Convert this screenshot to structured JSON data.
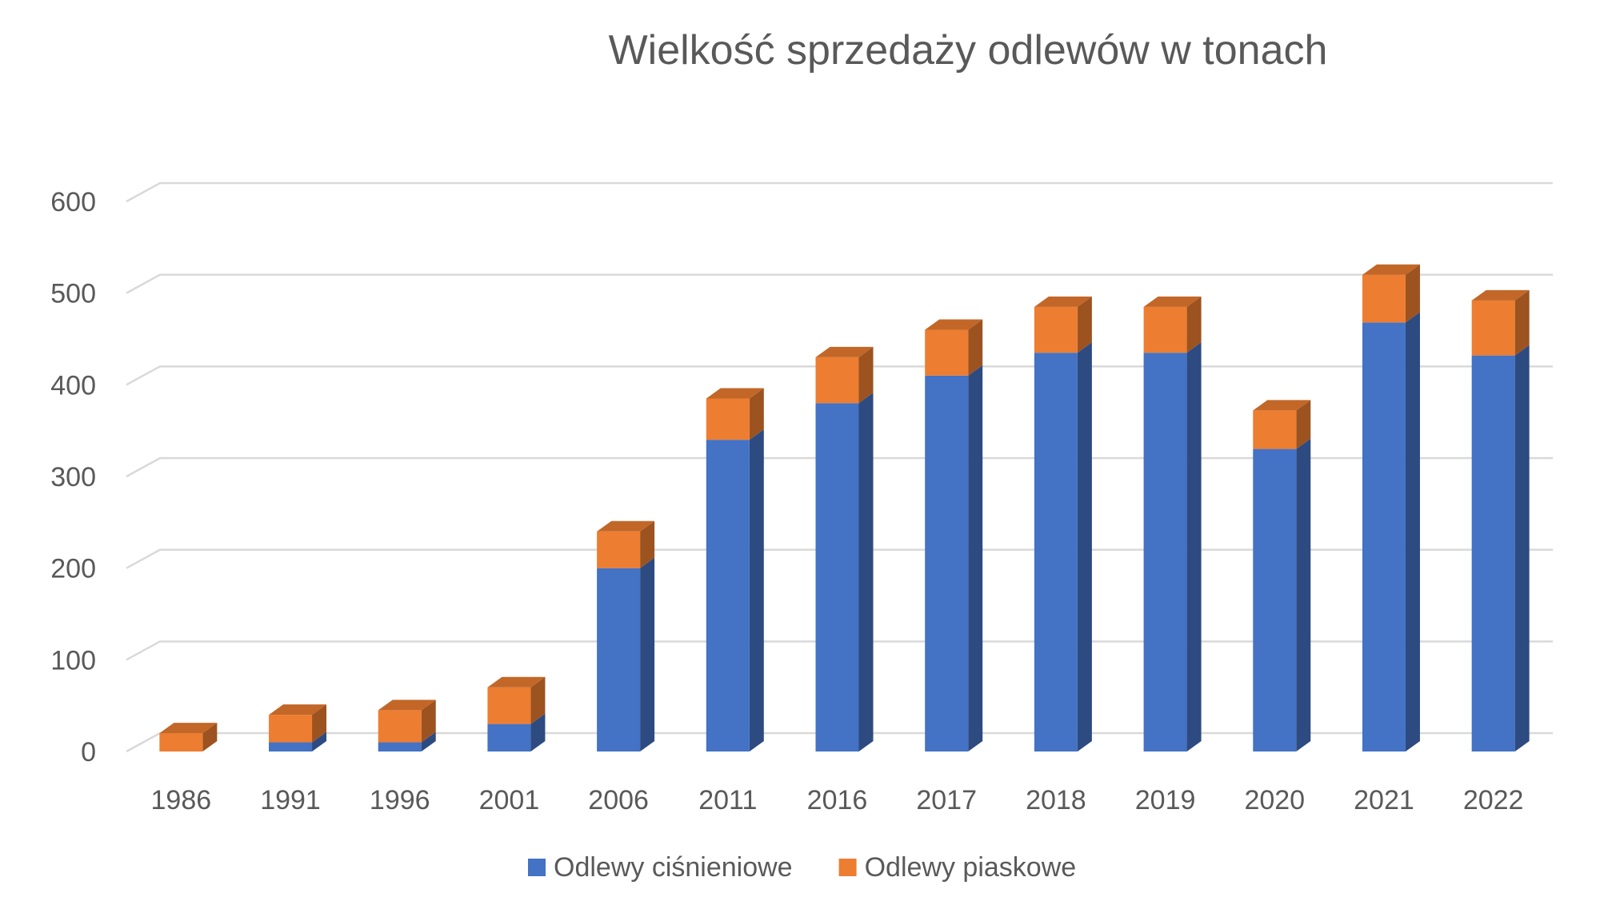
{
  "chart_data": {
    "type": "bar",
    "stacked": true,
    "three_d": true,
    "title": "Wielkość sprzedaży odlewów w tonach",
    "xlabel": "",
    "ylabel": "",
    "ylim": [
      0,
      600
    ],
    "yticks": [
      "0",
      "100",
      "200",
      "300",
      "400",
      "500",
      "600"
    ],
    "grid": true,
    "legend_position": "bottom",
    "categories": [
      "1986",
      "1991",
      "1996",
      "2001",
      "2006",
      "2011",
      "2016",
      "2017",
      "2018",
      "2019",
      "2020",
      "2021",
      "2022"
    ],
    "series": [
      {
        "name": "Odlewy ciśnieniowe",
        "color": "#4472C4",
        "values": [
          0,
          10,
          10,
          30,
          200,
          340,
          380,
          410,
          435,
          435,
          330,
          468,
          432
        ]
      },
      {
        "name": "Odlewy piaskowe",
        "color": "#ED7D31",
        "values": [
          20,
          30,
          35,
          40,
          40,
          45,
          50,
          50,
          50,
          50,
          42,
          52,
          60
        ]
      }
    ]
  }
}
